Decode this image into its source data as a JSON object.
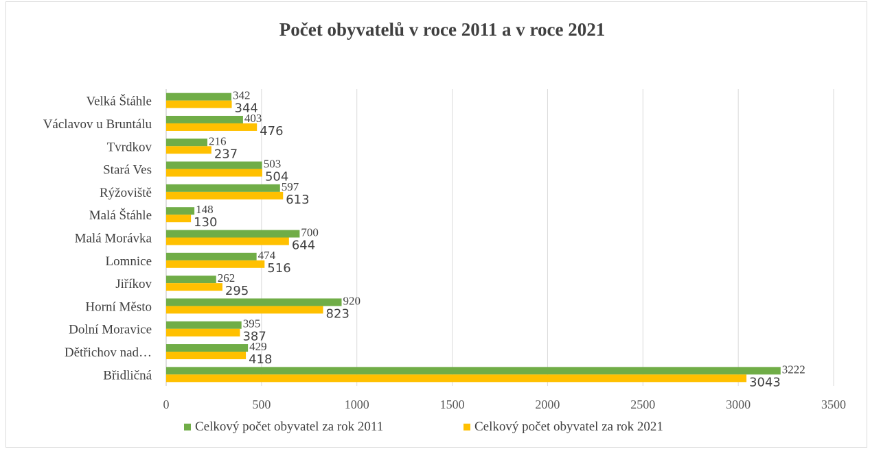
{
  "colors": {
    "series_2011": "#70ad47",
    "series_2021": "#ffc000",
    "grid": "#d9d9d9",
    "axis": "#bfbfbf"
  },
  "chart_data": {
    "type": "bar",
    "orientation": "horizontal",
    "title": "Počet obyvatelů v roce 2011 a v roce 2021",
    "categories": [
      "Břidličná",
      "Dětřichov nad…",
      "Dolní Moravice",
      "Horní Město",
      "Jiříkov",
      "Lomnice",
      "Malá Morávka",
      "Malá Štáhle",
      "Rýžoviště",
      "Stará Ves",
      "Tvrdkov",
      "Václavov u Bruntálu",
      "Velká Štáhle"
    ],
    "series": [
      {
        "name": "Celkový počet obyvatel za rok 2011",
        "values": [
          3222,
          429,
          395,
          920,
          262,
          474,
          700,
          148,
          597,
          503,
          216,
          403,
          342
        ]
      },
      {
        "name": "Celkový počet obyvatel za rok 2021",
        "values": [
          3043,
          418,
          387,
          823,
          295,
          516,
          644,
          130,
          613,
          504,
          237,
          476,
          344
        ]
      }
    ],
    "xlim": [
      0,
      3500
    ],
    "xticks": [
      "0",
      "500",
      "1000",
      "1500",
      "2000",
      "2500",
      "3000",
      "3500"
    ],
    "grid": true,
    "legend_position": "bottom",
    "data_labels": true
  }
}
